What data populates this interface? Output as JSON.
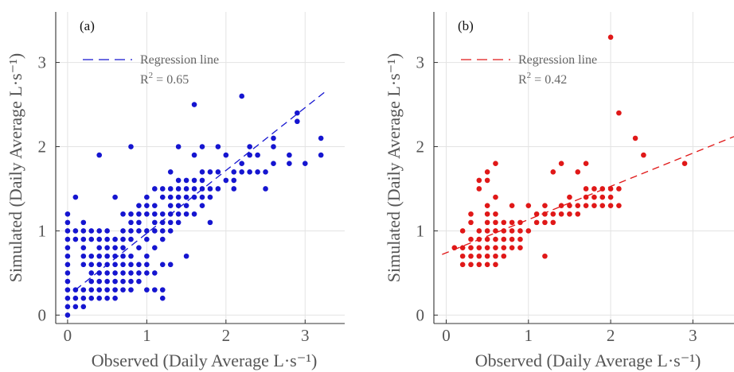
{
  "chart_data": [
    {
      "type": "scatter",
      "panel_label": "(a)",
      "xlabel": "Observed (Daily Average L·s⁻¹)",
      "ylabel": "Simulated (Daily Average L·s⁻¹)",
      "xlim": [
        -0.15,
        3.5
      ],
      "ylim": [
        -0.1,
        3.6
      ],
      "xticks": [
        "0",
        "1",
        "2",
        "3"
      ],
      "yticks": [
        "0",
        "1",
        "2",
        "3"
      ],
      "grid": true,
      "color": "#1515d0",
      "legend": {
        "label": "Regression line",
        "r2": "0.65",
        "placement": "top-left"
      },
      "regression": {
        "x1": 0.1,
        "y1": 0.3,
        "x2": 3.25,
        "y2": 2.65
      },
      "points": [
        [
          0,
          0
        ],
        [
          0,
          0.1
        ],
        [
          0,
          0.2
        ],
        [
          0,
          0.3
        ],
        [
          0,
          0.4
        ],
        [
          0,
          0.5
        ],
        [
          0,
          0.6
        ],
        [
          0,
          0.7
        ],
        [
          0,
          0.8
        ],
        [
          0,
          0.9
        ],
        [
          0,
          1.0
        ],
        [
          0,
          1.1
        ],
        [
          0,
          1.2
        ],
        [
          0.1,
          0.1
        ],
        [
          0.1,
          0.2
        ],
        [
          0.1,
          0.3
        ],
        [
          0.1,
          0.9
        ],
        [
          0.1,
          1.0
        ],
        [
          0.1,
          1.4
        ],
        [
          0.2,
          0.1
        ],
        [
          0.2,
          0.2
        ],
        [
          0.2,
          0.3
        ],
        [
          0.2,
          0.6
        ],
        [
          0.2,
          0.7
        ],
        [
          0.2,
          0.8
        ],
        [
          0.2,
          0.9
        ],
        [
          0.2,
          1.0
        ],
        [
          0.2,
          1.1
        ],
        [
          0.3,
          0.2
        ],
        [
          0.3,
          0.3
        ],
        [
          0.3,
          0.4
        ],
        [
          0.3,
          0.5
        ],
        [
          0.3,
          0.6
        ],
        [
          0.3,
          0.7
        ],
        [
          0.3,
          0.9
        ],
        [
          0.3,
          1.0
        ],
        [
          0.4,
          0.2
        ],
        [
          0.4,
          0.3
        ],
        [
          0.4,
          0.4
        ],
        [
          0.4,
          0.5
        ],
        [
          0.4,
          0.6
        ],
        [
          0.4,
          0.7
        ],
        [
          0.4,
          0.8
        ],
        [
          0.4,
          0.9
        ],
        [
          0.4,
          1.0
        ],
        [
          0.4,
          1.9
        ],
        [
          0.5,
          0.2
        ],
        [
          0.5,
          0.3
        ],
        [
          0.5,
          0.4
        ],
        [
          0.5,
          0.5
        ],
        [
          0.5,
          0.6
        ],
        [
          0.5,
          0.7
        ],
        [
          0.5,
          0.8
        ],
        [
          0.5,
          0.9
        ],
        [
          0.5,
          1.0
        ],
        [
          0.6,
          0.2
        ],
        [
          0.6,
          0.3
        ],
        [
          0.6,
          0.4
        ],
        [
          0.6,
          0.5
        ],
        [
          0.6,
          0.6
        ],
        [
          0.6,
          0.7
        ],
        [
          0.6,
          0.8
        ],
        [
          0.6,
          0.9
        ],
        [
          0.6,
          1.4
        ],
        [
          0.7,
          0.3
        ],
        [
          0.7,
          0.4
        ],
        [
          0.7,
          0.5
        ],
        [
          0.7,
          0.6
        ],
        [
          0.7,
          0.7
        ],
        [
          0.7,
          0.8
        ],
        [
          0.7,
          0.9
        ],
        [
          0.7,
          1.0
        ],
        [
          0.7,
          1.2
        ],
        [
          0.8,
          0.3
        ],
        [
          0.8,
          0.4
        ],
        [
          0.8,
          0.5
        ],
        [
          0.8,
          0.6
        ],
        [
          0.8,
          0.7
        ],
        [
          0.8,
          0.9
        ],
        [
          0.8,
          1.0
        ],
        [
          0.8,
          1.1
        ],
        [
          0.8,
          1.2
        ],
        [
          0.8,
          2.0
        ],
        [
          0.9,
          0.4
        ],
        [
          0.9,
          0.5
        ],
        [
          0.9,
          0.6
        ],
        [
          0.9,
          0.8
        ],
        [
          0.9,
          1.0
        ],
        [
          0.9,
          1.1
        ],
        [
          0.9,
          1.2
        ],
        [
          0.9,
          1.3
        ],
        [
          1.0,
          0.3
        ],
        [
          1.0,
          0.5
        ],
        [
          1.0,
          0.6
        ],
        [
          1.0,
          0.7
        ],
        [
          1.0,
          0.9
        ],
        [
          1.0,
          1.0
        ],
        [
          1.0,
          1.2
        ],
        [
          1.0,
          1.3
        ],
        [
          1.0,
          1.4
        ],
        [
          1.1,
          0.3
        ],
        [
          1.1,
          0.5
        ],
        [
          1.1,
          0.8
        ],
        [
          1.1,
          1.0
        ],
        [
          1.1,
          1.1
        ],
        [
          1.1,
          1.2
        ],
        [
          1.1,
          1.3
        ],
        [
          1.1,
          1.5
        ],
        [
          1.2,
          0.2
        ],
        [
          1.2,
          0.3
        ],
        [
          1.2,
          0.6
        ],
        [
          1.2,
          0.9
        ],
        [
          1.2,
          1.0
        ],
        [
          1.2,
          1.1
        ],
        [
          1.2,
          1.2
        ],
        [
          1.2,
          1.4
        ],
        [
          1.2,
          1.5
        ],
        [
          1.3,
          0.6
        ],
        [
          1.3,
          1.0
        ],
        [
          1.3,
          1.1
        ],
        [
          1.3,
          1.2
        ],
        [
          1.3,
          1.3
        ],
        [
          1.3,
          1.4
        ],
        [
          1.3,
          1.5
        ],
        [
          1.3,
          1.7
        ],
        [
          1.4,
          1.1
        ],
        [
          1.4,
          1.2
        ],
        [
          1.4,
          1.3
        ],
        [
          1.4,
          1.4
        ],
        [
          1.4,
          1.5
        ],
        [
          1.4,
          1.6
        ],
        [
          1.4,
          2.0
        ],
        [
          1.5,
          0.7
        ],
        [
          1.5,
          1.2
        ],
        [
          1.5,
          1.3
        ],
        [
          1.5,
          1.4
        ],
        [
          1.5,
          1.5
        ],
        [
          1.5,
          1.6
        ],
        [
          1.6,
          1.2
        ],
        [
          1.6,
          1.4
        ],
        [
          1.6,
          1.5
        ],
        [
          1.6,
          1.6
        ],
        [
          1.6,
          1.9
        ],
        [
          1.6,
          2.5
        ],
        [
          1.7,
          1.3
        ],
        [
          1.7,
          1.4
        ],
        [
          1.7,
          1.5
        ],
        [
          1.7,
          1.6
        ],
        [
          1.7,
          1.7
        ],
        [
          1.7,
          2.0
        ],
        [
          1.8,
          1.1
        ],
        [
          1.8,
          1.4
        ],
        [
          1.8,
          1.5
        ],
        [
          1.8,
          1.7
        ],
        [
          1.9,
          1.5
        ],
        [
          1.9,
          1.7
        ],
        [
          1.9,
          2.0
        ],
        [
          2.0,
          1.6
        ],
        [
          2.0,
          1.9
        ],
        [
          2.1,
          1.5
        ],
        [
          2.1,
          1.6
        ],
        [
          2.1,
          1.7
        ],
        [
          2.2,
          1.7
        ],
        [
          2.2,
          1.8
        ],
        [
          2.2,
          2.6
        ],
        [
          2.3,
          1.7
        ],
        [
          2.3,
          1.9
        ],
        [
          2.3,
          2.0
        ],
        [
          2.4,
          1.7
        ],
        [
          2.4,
          1.9
        ],
        [
          2.5,
          1.5
        ],
        [
          2.5,
          1.7
        ],
        [
          2.6,
          1.8
        ],
        [
          2.6,
          2.0
        ],
        [
          2.6,
          2.1
        ],
        [
          2.8,
          1.8
        ],
        [
          2.8,
          1.9
        ],
        [
          2.9,
          2.3
        ],
        [
          2.9,
          2.4
        ],
        [
          3.0,
          1.8
        ],
        [
          3.2,
          1.9
        ],
        [
          3.2,
          2.1
        ]
      ]
    },
    {
      "type": "scatter",
      "panel_label": "(b)",
      "xlabel": "Observed (Daily Average L·s⁻¹)",
      "ylabel": "Simulated (Daily Average L·s⁻¹)",
      "xlim": [
        -0.15,
        3.5
      ],
      "ylim": [
        -0.1,
        3.6
      ],
      "xticks": [
        "0",
        "1",
        "2",
        "3"
      ],
      "yticks": [
        "0",
        "1",
        "2",
        "3"
      ],
      "grid": true,
      "color": "#e01818",
      "legend": {
        "label": "Regression line",
        "r2": "0.42",
        "placement": "top-left"
      },
      "regression": {
        "x1": -0.05,
        "y1": 0.72,
        "x2": 3.5,
        "y2": 2.12
      },
      "points": [
        [
          0.1,
          0.8
        ],
        [
          0.2,
          0.6
        ],
        [
          0.2,
          0.7
        ],
        [
          0.2,
          0.8
        ],
        [
          0.2,
          1.0
        ],
        [
          0.3,
          0.6
        ],
        [
          0.3,
          0.7
        ],
        [
          0.3,
          0.8
        ],
        [
          0.3,
          0.9
        ],
        [
          0.3,
          1.1
        ],
        [
          0.3,
          1.2
        ],
        [
          0.4,
          0.6
        ],
        [
          0.4,
          0.7
        ],
        [
          0.4,
          0.8
        ],
        [
          0.4,
          0.9
        ],
        [
          0.4,
          1.0
        ],
        [
          0.4,
          1.5
        ],
        [
          0.4,
          1.6
        ],
        [
          0.5,
          0.6
        ],
        [
          0.5,
          0.7
        ],
        [
          0.5,
          0.8
        ],
        [
          0.5,
          0.9
        ],
        [
          0.5,
          1.0
        ],
        [
          0.5,
          1.1
        ],
        [
          0.5,
          1.2
        ],
        [
          0.5,
          1.3
        ],
        [
          0.5,
          1.6
        ],
        [
          0.5,
          1.7
        ],
        [
          0.6,
          0.6
        ],
        [
          0.6,
          0.7
        ],
        [
          0.6,
          0.8
        ],
        [
          0.6,
          0.9
        ],
        [
          0.6,
          1.0
        ],
        [
          0.6,
          1.1
        ],
        [
          0.6,
          1.2
        ],
        [
          0.6,
          1.4
        ],
        [
          0.6,
          1.8
        ],
        [
          0.7,
          0.7
        ],
        [
          0.7,
          0.8
        ],
        [
          0.7,
          0.9
        ],
        [
          0.7,
          1.0
        ],
        [
          0.7,
          1.1
        ],
        [
          0.8,
          0.8
        ],
        [
          0.8,
          0.9
        ],
        [
          0.8,
          1.0
        ],
        [
          0.8,
          1.1
        ],
        [
          0.8,
          1.3
        ],
        [
          0.9,
          0.8
        ],
        [
          0.9,
          0.9
        ],
        [
          0.9,
          1.0
        ],
        [
          0.9,
          1.1
        ],
        [
          1.0,
          1.0
        ],
        [
          1.0,
          1.3
        ],
        [
          1.1,
          1.1
        ],
        [
          1.1,
          1.2
        ],
        [
          1.2,
          0.7
        ],
        [
          1.2,
          1.1
        ],
        [
          1.2,
          1.2
        ],
        [
          1.2,
          1.3
        ],
        [
          1.3,
          1.1
        ],
        [
          1.3,
          1.2
        ],
        [
          1.3,
          1.7
        ],
        [
          1.4,
          1.2
        ],
        [
          1.4,
          1.3
        ],
        [
          1.4,
          1.8
        ],
        [
          1.5,
          1.2
        ],
        [
          1.5,
          1.3
        ],
        [
          1.5,
          1.4
        ],
        [
          1.6,
          1.2
        ],
        [
          1.6,
          1.3
        ],
        [
          1.6,
          1.7
        ],
        [
          1.7,
          1.3
        ],
        [
          1.7,
          1.4
        ],
        [
          1.7,
          1.5
        ],
        [
          1.7,
          1.8
        ],
        [
          1.8,
          1.3
        ],
        [
          1.8,
          1.4
        ],
        [
          1.8,
          1.5
        ],
        [
          1.9,
          1.3
        ],
        [
          1.9,
          1.4
        ],
        [
          1.9,
          1.5
        ],
        [
          2.0,
          1.3
        ],
        [
          2.0,
          1.4
        ],
        [
          2.0,
          1.5
        ],
        [
          2.0,
          3.3
        ],
        [
          2.1,
          1.3
        ],
        [
          2.1,
          1.5
        ],
        [
          2.1,
          2.4
        ],
        [
          2.3,
          2.1
        ],
        [
          2.4,
          1.9
        ],
        [
          2.9,
          1.8
        ]
      ]
    }
  ]
}
